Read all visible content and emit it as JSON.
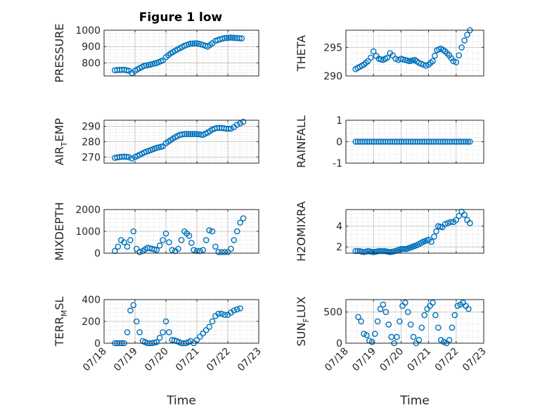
{
  "figure_title": "Figure 1 low",
  "x_tick_labels": [
    "07/18",
    "07/19",
    "07/20",
    "07/21",
    "07/22",
    "07/23"
  ],
  "marker_color": "#0072BD",
  "chart_data": [
    {
      "type": "scatter",
      "ylabel": "PRESSURE",
      "title": "Figure 1 low",
      "xlim": [
        0,
        5
      ],
      "ylim": [
        720,
        1000
      ],
      "yticks": [
        800,
        900,
        1000
      ],
      "grid": true,
      "marker": "open-circle",
      "x": [
        0.35,
        0.5,
        0.65,
        0.8,
        0.9,
        1.0,
        1.15,
        1.3,
        1.5,
        1.7,
        1.9,
        2.0,
        2.15,
        2.3,
        2.45,
        2.6,
        2.8,
        3.0,
        3.2,
        3.35,
        3.5,
        3.6,
        3.75,
        3.9,
        4.1,
        4.3,
        4.45
      ],
      "y": [
        755,
        757,
        758,
        752,
        738,
        752,
        768,
        782,
        790,
        800,
        815,
        835,
        858,
        875,
        890,
        905,
        918,
        920,
        910,
        900,
        920,
        935,
        945,
        952,
        955,
        952,
        950
      ]
    },
    {
      "type": "scatter",
      "ylabel": "THETA",
      "xlim": [
        0,
        5
      ],
      "ylim": [
        290,
        298
      ],
      "yticks": [
        290,
        295
      ],
      "grid": true,
      "marker": "open-circle",
      "x": [
        0.35,
        0.5,
        0.65,
        0.8,
        0.9,
        1.0,
        1.1,
        1.2,
        1.35,
        1.5,
        1.6,
        1.7,
        1.8,
        1.9,
        2.0,
        2.15,
        2.3,
        2.5,
        2.65,
        2.8,
        2.9,
        3.0,
        3.15,
        3.3,
        3.45,
        3.6,
        3.75,
        3.9,
        4.0,
        4.1,
        4.2,
        4.3,
        4.4,
        4.5
      ],
      "y": [
        291.2,
        291.6,
        292.0,
        292.6,
        293.2,
        294.3,
        293.5,
        293.0,
        292.8,
        293.2,
        294.0,
        293.6,
        293.0,
        292.8,
        293.0,
        292.8,
        292.6,
        292.8,
        292.3,
        292.0,
        291.8,
        292.0,
        292.6,
        294.5,
        294.8,
        294.3,
        293.6,
        292.6,
        292.4,
        293.6,
        295.0,
        296.2,
        297.2,
        298.0
      ]
    },
    {
      "type": "scatter",
      "ylabel": "AIR_TEMP",
      "xlim": [
        0,
        5
      ],
      "ylim": [
        266,
        294
      ],
      "yticks": [
        270,
        280,
        290
      ],
      "grid": true,
      "marker": "open-circle",
      "x": [
        0.35,
        0.5,
        0.65,
        0.8,
        0.9,
        1.0,
        1.15,
        1.3,
        1.5,
        1.7,
        1.9,
        2.0,
        2.15,
        2.3,
        2.45,
        2.6,
        2.8,
        3.0,
        3.2,
        3.35,
        3.5,
        3.65,
        3.8,
        3.95,
        4.1,
        4.2,
        4.3,
        4.4,
        4.5
      ],
      "y": [
        269.5,
        270.0,
        270.3,
        270.0,
        269.0,
        270.0,
        271.5,
        273.0,
        274.5,
        276.0,
        277.0,
        279.0,
        281.0,
        283.0,
        284.5,
        285.0,
        285.0,
        285.0,
        284.5,
        286.0,
        288.0,
        289.0,
        289.0,
        288.5,
        288.5,
        289.5,
        291.0,
        292.0,
        293.0
      ]
    },
    {
      "type": "scatter",
      "ylabel": "RAINFALL",
      "xlim": [
        0,
        5
      ],
      "ylim": [
        -1,
        1
      ],
      "yticks": [
        -1,
        0,
        1
      ],
      "grid": true,
      "marker": "open-circle",
      "x": [
        0.35,
        0.6,
        0.85,
        1.1,
        1.35,
        1.6,
        1.85,
        2.1,
        2.35,
        2.6,
        2.85,
        3.1,
        3.35,
        3.6,
        3.85,
        4.1,
        4.35,
        4.5
      ],
      "y": [
        0,
        0,
        0,
        0,
        0,
        0,
        0,
        0,
        0,
        0,
        0,
        0,
        0,
        0,
        0,
        0,
        0,
        0
      ]
    },
    {
      "type": "scatter",
      "ylabel": "MIXDEPTH",
      "xlim": [
        0,
        5
      ],
      "ylim": [
        0,
        2000
      ],
      "yticks": [
        0,
        1000,
        2000
      ],
      "grid": true,
      "marker": "open-circle",
      "x": [
        0.35,
        0.45,
        0.55,
        0.65,
        0.75,
        0.85,
        0.95,
        1.05,
        1.15,
        1.25,
        1.4,
        1.55,
        1.7,
        1.8,
        1.9,
        2.0,
        2.1,
        2.2,
        2.3,
        2.4,
        2.5,
        2.6,
        2.75,
        2.9,
        3.0,
        3.1,
        3.2,
        3.3,
        3.4,
        3.5,
        3.6,
        3.7,
        3.8,
        3.9,
        4.0,
        4.1,
        4.2,
        4.3,
        4.4,
        4.5
      ],
      "y": [
        100,
        300,
        600,
        500,
        300,
        600,
        1000,
        200,
        50,
        100,
        250,
        200,
        150,
        350,
        600,
        900,
        500,
        150,
        100,
        200,
        600,
        1000,
        800,
        150,
        100,
        100,
        150,
        600,
        1050,
        1000,
        300,
        50,
        50,
        50,
        50,
        200,
        600,
        1000,
        1400,
        1600
      ]
    },
    {
      "type": "scatter",
      "ylabel": "H2OMIXRA",
      "xlim": [
        0,
        5
      ],
      "ylim": [
        1.4,
        5.6
      ],
      "yticks": [
        2,
        4
      ],
      "grid": true,
      "marker": "open-circle",
      "x": [
        0.35,
        0.5,
        0.65,
        0.8,
        1.0,
        1.2,
        1.4,
        1.6,
        1.8,
        2.0,
        2.2,
        2.4,
        2.6,
        2.8,
        3.0,
        3.1,
        3.2,
        3.35,
        3.5,
        3.6,
        3.7,
        3.8,
        3.9,
        4.0,
        4.1,
        4.2,
        4.3,
        4.4,
        4.5
      ],
      "y": [
        1.6,
        1.6,
        1.5,
        1.6,
        1.5,
        1.6,
        1.6,
        1.5,
        1.6,
        1.8,
        1.8,
        2.0,
        2.2,
        2.5,
        2.7,
        2.5,
        3.0,
        4.0,
        3.9,
        4.2,
        4.3,
        4.4,
        4.4,
        4.6,
        5.0,
        5.4,
        5.1,
        4.6,
        4.3
      ]
    },
    {
      "type": "scatter",
      "ylabel": "TERR_MSL",
      "xlim": [
        0,
        5
      ],
      "ylim": [
        0,
        400
      ],
      "yticks": [
        0,
        200,
        400
      ],
      "grid": true,
      "marker": "open-circle",
      "x": [
        0.35,
        0.5,
        0.65,
        0.75,
        0.85,
        0.95,
        1.05,
        1.15,
        1.25,
        1.4,
        1.55,
        1.7,
        1.8,
        1.9,
        2.0,
        2.1,
        2.2,
        2.35,
        2.5,
        2.65,
        2.8,
        2.9,
        3.0,
        3.1,
        3.2,
        3.3,
        3.4,
        3.5,
        3.6,
        3.7,
        3.8,
        3.9,
        4.0,
        4.1,
        4.2,
        4.3,
        4.4
      ],
      "y": [
        0,
        0,
        0,
        100,
        300,
        350,
        200,
        100,
        20,
        0,
        0,
        10,
        50,
        100,
        200,
        100,
        30,
        20,
        0,
        0,
        20,
        0,
        30,
        60,
        90,
        120,
        150,
        200,
        250,
        270,
        270,
        260,
        260,
        280,
        300,
        310,
        320
      ]
    },
    {
      "type": "scatter",
      "ylabel": "SUN_FLUX",
      "xlim": [
        0,
        5
      ],
      "ylim": [
        0,
        700
      ],
      "yticks": [
        0,
        500
      ],
      "grid": true,
      "marker": "open-circle",
      "x": [
        0.45,
        0.55,
        0.65,
        0.75,
        0.85,
        0.95,
        1.05,
        1.15,
        1.25,
        1.35,
        1.45,
        1.55,
        1.65,
        1.75,
        1.85,
        1.95,
        2.05,
        2.15,
        2.25,
        2.35,
        2.45,
        2.55,
        2.65,
        2.75,
        2.85,
        2.95,
        3.05,
        3.15,
        3.25,
        3.35,
        3.45,
        3.55,
        3.65,
        3.75,
        3.85,
        3.95,
        4.05,
        4.15,
        4.25,
        4.35,
        4.45
      ],
      "y": [
        420,
        350,
        150,
        130,
        40,
        20,
        150,
        350,
        550,
        620,
        500,
        300,
        100,
        0,
        100,
        350,
        600,
        650,
        500,
        300,
        100,
        0,
        50,
        250,
        450,
        550,
        600,
        650,
        450,
        250,
        50,
        20,
        0,
        50,
        250,
        450,
        600,
        620,
        650,
        600,
        550
      ]
    }
  ],
  "x_labels": [
    "Time",
    "Time"
  ]
}
